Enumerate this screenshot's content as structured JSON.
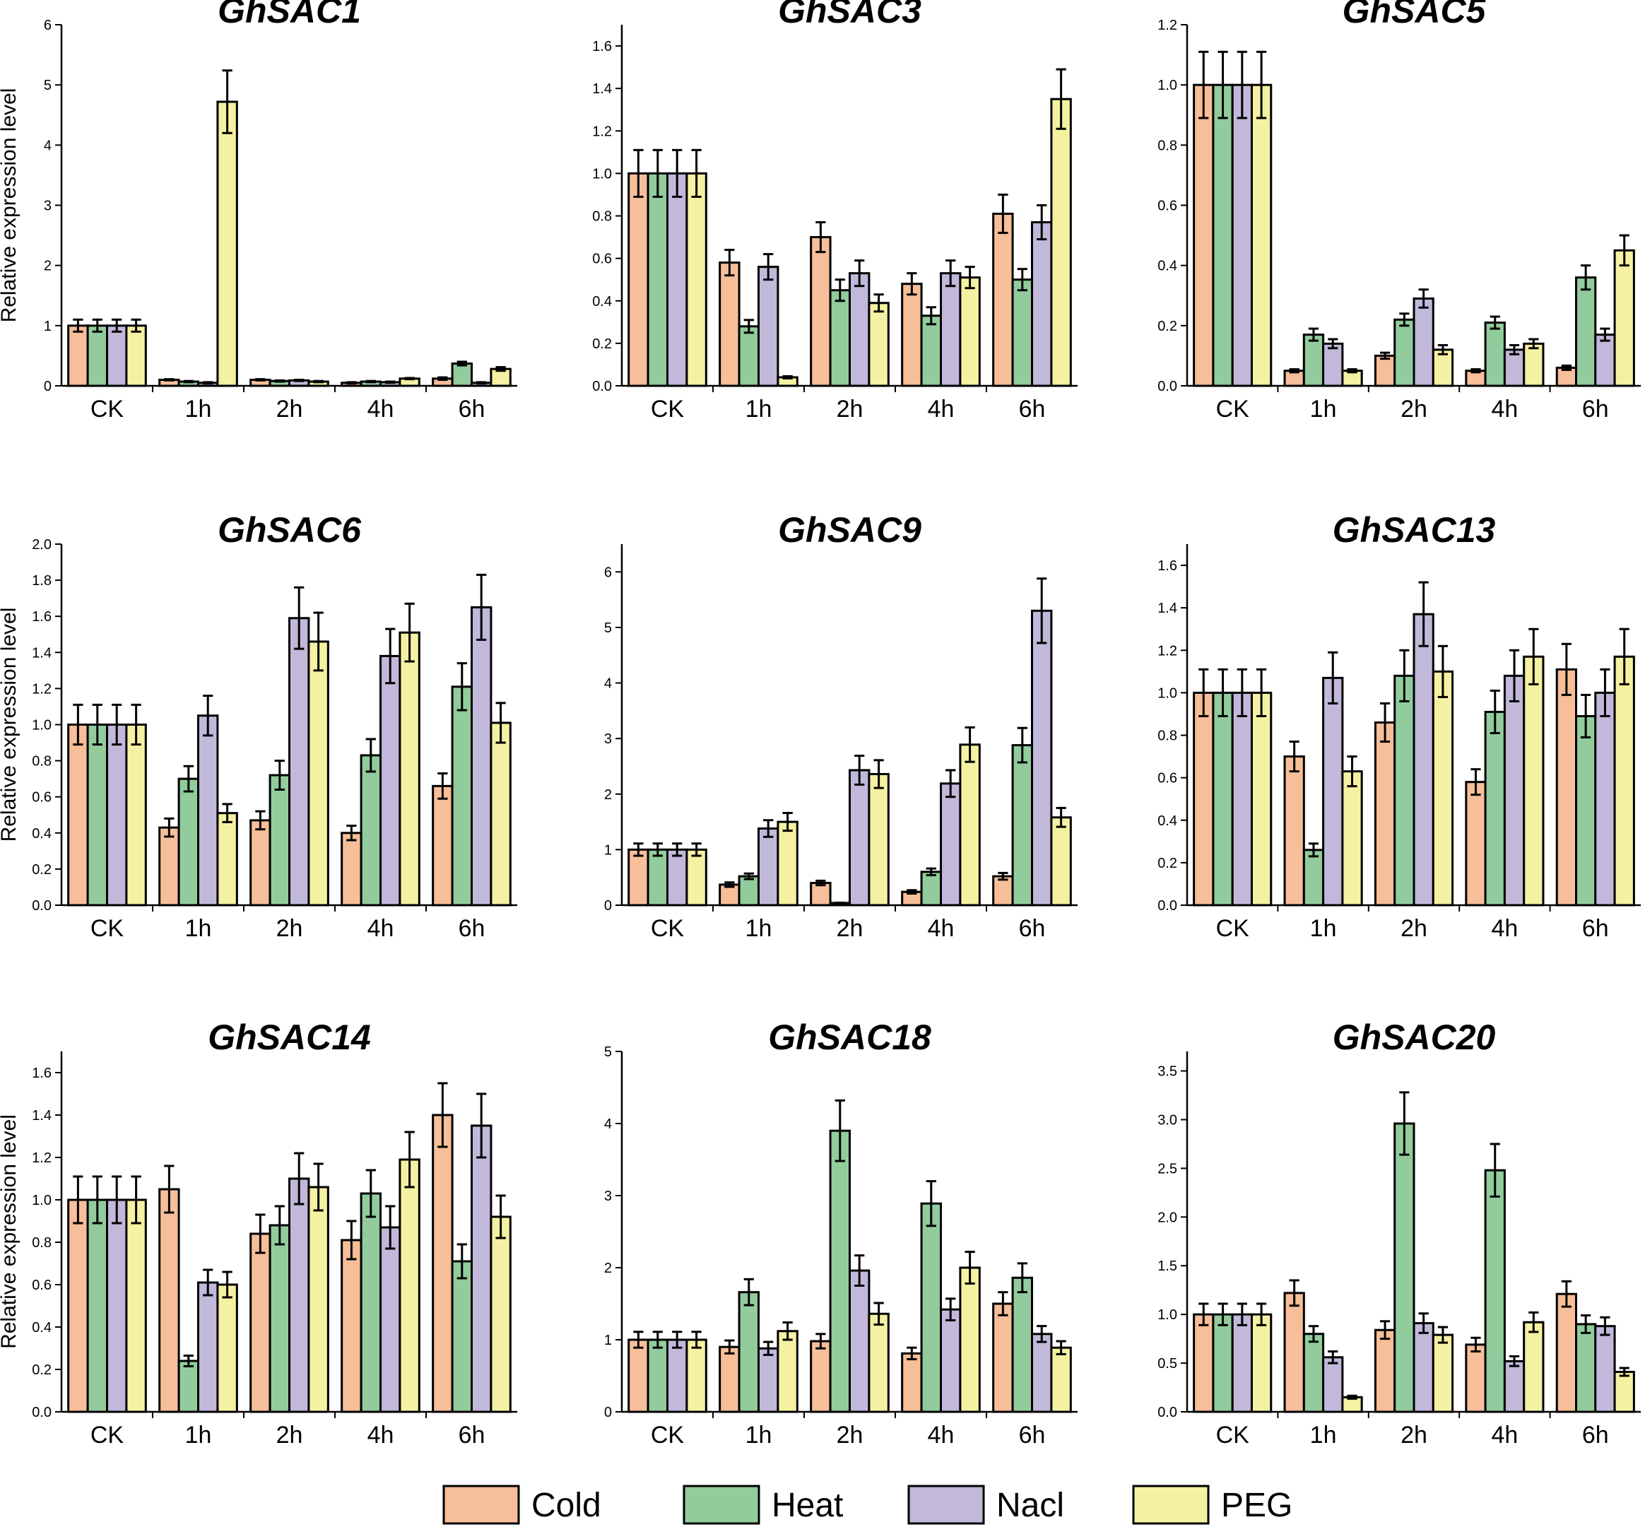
{
  "figure": {
    "legend": [
      {
        "name": "Cold",
        "color": "#F6BE99"
      },
      {
        "name": "Heat",
        "color": "#92CC9C"
      },
      {
        "name": "Nacl",
        "color": "#C1B8DA"
      },
      {
        "name": "PEG",
        "color": "#F5F1A2"
      }
    ]
  },
  "chart_data": [
    {
      "type": "bar",
      "title": "GhSAC1",
      "ylabel": "Relative expression level",
      "categories": [
        "CK",
        "1h",
        "2h",
        "4h",
        "6h"
      ],
      "ylim": [
        0,
        6
      ],
      "yticks": [
        0,
        1,
        2,
        3,
        4,
        5,
        6
      ],
      "ytick_labels": [
        "0",
        "1",
        "2",
        "3",
        "4",
        "5",
        "6"
      ],
      "series": [
        {
          "name": "Cold",
          "values": [
            1.0,
            0.1,
            0.1,
            0.05,
            0.12
          ],
          "errors": [
            0.1,
            0.01,
            0.01,
            0.01,
            0.02
          ]
        },
        {
          "name": "Heat",
          "values": [
            1.0,
            0.07,
            0.08,
            0.07,
            0.37
          ],
          "errors": [
            0.1,
            0.01,
            0.01,
            0.01,
            0.03
          ]
        },
        {
          "name": "Nacl",
          "values": [
            1.0,
            0.05,
            0.09,
            0.06,
            0.05
          ],
          "errors": [
            0.1,
            0.01,
            0.01,
            0.01,
            0.01
          ]
        },
        {
          "name": "PEG",
          "values": [
            1.0,
            4.72,
            0.07,
            0.12,
            0.28
          ],
          "errors": [
            0.1,
            0.52,
            0.01,
            0.01,
            0.03
          ]
        }
      ]
    },
    {
      "type": "bar",
      "title": "GhSAC3",
      "ylabel": "",
      "categories": [
        "CK",
        "1h",
        "2h",
        "4h",
        "6h"
      ],
      "ylim": [
        0,
        1.7
      ],
      "yticks": [
        0,
        0.2,
        0.4,
        0.6,
        0.8,
        1.0,
        1.2,
        1.4,
        1.6
      ],
      "ytick_labels": [
        "0.0",
        "0.2",
        "0.4",
        "0.6",
        "0.8",
        "1.0",
        "1.2",
        "1.4",
        "1.6"
      ],
      "series": [
        {
          "name": "Cold",
          "values": [
            1.0,
            0.58,
            0.7,
            0.48,
            0.81
          ],
          "errors": [
            0.11,
            0.06,
            0.07,
            0.05,
            0.09
          ]
        },
        {
          "name": "Heat",
          "values": [
            1.0,
            0.28,
            0.45,
            0.33,
            0.5
          ],
          "errors": [
            0.11,
            0.03,
            0.05,
            0.04,
            0.05
          ]
        },
        {
          "name": "Nacl",
          "values": [
            1.0,
            0.56,
            0.53,
            0.53,
            0.77
          ],
          "errors": [
            0.11,
            0.06,
            0.06,
            0.06,
            0.08
          ]
        },
        {
          "name": "PEG",
          "values": [
            1.0,
            0.04,
            0.39,
            0.51,
            1.35
          ],
          "errors": [
            0.11,
            0.005,
            0.04,
            0.05,
            0.14
          ]
        }
      ]
    },
    {
      "type": "bar",
      "title": "GhSAC5",
      "ylabel": "",
      "categories": [
        "CK",
        "1h",
        "2h",
        "4h",
        "6h"
      ],
      "ylim": [
        0,
        1.2
      ],
      "yticks": [
        0,
        0.2,
        0.4,
        0.6,
        0.8,
        1.0,
        1.2
      ],
      "ytick_labels": [
        "0.0",
        "0.2",
        "0.4",
        "0.6",
        "0.8",
        "1.0",
        "1.2"
      ],
      "series": [
        {
          "name": "Cold",
          "values": [
            1.0,
            0.05,
            0.1,
            0.05,
            0.06
          ],
          "errors": [
            0.11,
            0.005,
            0.01,
            0.005,
            0.007
          ]
        },
        {
          "name": "Heat",
          "values": [
            1.0,
            0.17,
            0.22,
            0.21,
            0.36
          ],
          "errors": [
            0.11,
            0.02,
            0.02,
            0.02,
            0.04
          ]
        },
        {
          "name": "Nacl",
          "values": [
            1.0,
            0.14,
            0.29,
            0.12,
            0.17
          ],
          "errors": [
            0.11,
            0.015,
            0.03,
            0.015,
            0.02
          ]
        },
        {
          "name": "PEG",
          "values": [
            1.0,
            0.05,
            0.12,
            0.14,
            0.45
          ],
          "errors": [
            0.11,
            0.005,
            0.015,
            0.015,
            0.05
          ]
        }
      ]
    },
    {
      "type": "bar",
      "title": "GhSAC6",
      "ylabel": "Relative expression level",
      "categories": [
        "CK",
        "1h",
        "2h",
        "4h",
        "6h"
      ],
      "ylim": [
        0,
        2.0
      ],
      "yticks": [
        0,
        0.2,
        0.4,
        0.6,
        0.8,
        1.0,
        1.2,
        1.4,
        1.6,
        1.8,
        2.0
      ],
      "ytick_labels": [
        "0.0",
        "0.2",
        "0.4",
        "0.6",
        "0.8",
        "1.0",
        "1.2",
        "1.4",
        "1.6",
        "1.8",
        "2.0"
      ],
      "series": [
        {
          "name": "Cold",
          "values": [
            1.0,
            0.43,
            0.47,
            0.4,
            0.66
          ],
          "errors": [
            0.11,
            0.05,
            0.05,
            0.04,
            0.07
          ]
        },
        {
          "name": "Heat",
          "values": [
            1.0,
            0.7,
            0.72,
            0.83,
            1.21
          ],
          "errors": [
            0.11,
            0.07,
            0.08,
            0.09,
            0.13
          ]
        },
        {
          "name": "Nacl",
          "values": [
            1.0,
            1.05,
            1.59,
            1.38,
            1.65
          ],
          "errors": [
            0.11,
            0.11,
            0.17,
            0.15,
            0.18
          ]
        },
        {
          "name": "PEG",
          "values": [
            1.0,
            0.51,
            1.46,
            1.51,
            1.01
          ],
          "errors": [
            0.11,
            0.05,
            0.16,
            0.16,
            0.11
          ]
        }
      ]
    },
    {
      "type": "bar",
      "title": "GhSAC9",
      "ylabel": "",
      "categories": [
        "CK",
        "1h",
        "2h",
        "4h",
        "6h"
      ],
      "ylim": [
        0,
        6.5
      ],
      "yticks": [
        0,
        1,
        2,
        3,
        4,
        5,
        6
      ],
      "ytick_labels": [
        "0",
        "1",
        "2",
        "3",
        "4",
        "5",
        "6"
      ],
      "series": [
        {
          "name": "Cold",
          "values": [
            1.0,
            0.37,
            0.4,
            0.24,
            0.52
          ],
          "errors": [
            0.11,
            0.04,
            0.04,
            0.03,
            0.06
          ]
        },
        {
          "name": "Heat",
          "values": [
            1.0,
            0.52,
            0.04,
            0.6,
            2.88
          ],
          "errors": [
            0.11,
            0.05,
            0.005,
            0.06,
            0.31
          ]
        },
        {
          "name": "Nacl",
          "values": [
            1.0,
            1.38,
            2.43,
            2.19,
            5.3
          ],
          "errors": [
            0.11,
            0.15,
            0.26,
            0.24,
            0.58
          ]
        },
        {
          "name": "PEG",
          "values": [
            1.0,
            1.5,
            2.36,
            2.89,
            1.58
          ],
          "errors": [
            0.11,
            0.16,
            0.25,
            0.31,
            0.17
          ]
        }
      ]
    },
    {
      "type": "bar",
      "title": "GhSAC13",
      "ylabel": "",
      "categories": [
        "CK",
        "1h",
        "2h",
        "4h",
        "6h"
      ],
      "ylim": [
        0,
        1.7
      ],
      "yticks": [
        0,
        0.2,
        0.4,
        0.6,
        0.8,
        1.0,
        1.2,
        1.4,
        1.6
      ],
      "ytick_labels": [
        "0.0",
        "0.2",
        "0.4",
        "0.6",
        "0.8",
        "1.0",
        "1.2",
        "1.4",
        "1.6"
      ],
      "series": [
        {
          "name": "Cold",
          "values": [
            1.0,
            0.7,
            0.86,
            0.58,
            1.11
          ],
          "errors": [
            0.11,
            0.07,
            0.09,
            0.06,
            0.12
          ]
        },
        {
          "name": "Heat",
          "values": [
            1.0,
            0.26,
            1.08,
            0.91,
            0.89
          ],
          "errors": [
            0.11,
            0.03,
            0.12,
            0.1,
            0.1
          ]
        },
        {
          "name": "Nacl",
          "values": [
            1.0,
            1.07,
            1.37,
            1.08,
            1.0
          ],
          "errors": [
            0.11,
            0.12,
            0.15,
            0.12,
            0.11
          ]
        },
        {
          "name": "PEG",
          "values": [
            1.0,
            0.63,
            1.1,
            1.17,
            1.17
          ],
          "errors": [
            0.11,
            0.07,
            0.12,
            0.13,
            0.13
          ]
        }
      ]
    },
    {
      "type": "bar",
      "title": "GhSAC14",
      "ylabel": "Relative expression level",
      "categories": [
        "CK",
        "1h",
        "2h",
        "4h",
        "6h"
      ],
      "ylim": [
        0,
        1.7
      ],
      "yticks": [
        0,
        0.2,
        0.4,
        0.6,
        0.8,
        1.0,
        1.2,
        1.4,
        1.6
      ],
      "ytick_labels": [
        "0.0",
        "0.2",
        "0.4",
        "0.6",
        "0.8",
        "1.0",
        "1.2",
        "1.4",
        "1.6"
      ],
      "series": [
        {
          "name": "Cold",
          "values": [
            1.0,
            1.05,
            0.84,
            0.81,
            1.4
          ],
          "errors": [
            0.11,
            0.11,
            0.09,
            0.09,
            0.15
          ]
        },
        {
          "name": "Heat",
          "values": [
            1.0,
            0.24,
            0.88,
            1.03,
            0.71
          ],
          "errors": [
            0.11,
            0.025,
            0.09,
            0.11,
            0.08
          ]
        },
        {
          "name": "Nacl",
          "values": [
            1.0,
            0.61,
            1.1,
            0.87,
            1.35
          ],
          "errors": [
            0.11,
            0.06,
            0.12,
            0.1,
            0.15
          ]
        },
        {
          "name": "PEG",
          "values": [
            1.0,
            0.6,
            1.06,
            1.19,
            0.92
          ],
          "errors": [
            0.11,
            0.06,
            0.11,
            0.13,
            0.1
          ]
        }
      ]
    },
    {
      "type": "bar",
      "title": "GhSAC18",
      "ylabel": "",
      "categories": [
        "CK",
        "1h",
        "2h",
        "4h",
        "6h"
      ],
      "ylim": [
        0,
        5
      ],
      "yticks": [
        0,
        1,
        2,
        3,
        4,
        5
      ],
      "ytick_labels": [
        "0",
        "1",
        "2",
        "3",
        "4",
        "5"
      ],
      "series": [
        {
          "name": "Cold",
          "values": [
            1.0,
            0.9,
            0.98,
            0.81,
            1.5
          ],
          "errors": [
            0.11,
            0.09,
            0.1,
            0.08,
            0.16
          ]
        },
        {
          "name": "Heat",
          "values": [
            1.0,
            1.66,
            3.9,
            2.89,
            1.86
          ],
          "errors": [
            0.11,
            0.18,
            0.42,
            0.31,
            0.2
          ]
        },
        {
          "name": "Nacl",
          "values": [
            1.0,
            0.88,
            1.96,
            1.42,
            1.08
          ],
          "errors": [
            0.11,
            0.09,
            0.21,
            0.15,
            0.11
          ]
        },
        {
          "name": "PEG",
          "values": [
            1.0,
            1.12,
            1.36,
            2.0,
            0.89
          ],
          "errors": [
            0.11,
            0.12,
            0.15,
            0.22,
            0.09
          ]
        }
      ]
    },
    {
      "type": "bar",
      "title": "GhSAC20",
      "ylabel": "",
      "categories": [
        "CK",
        "1h",
        "2h",
        "4h",
        "6h"
      ],
      "ylim": [
        0,
        3.7
      ],
      "yticks": [
        0,
        0.5,
        1.0,
        1.5,
        2.0,
        2.5,
        3.0,
        3.5
      ],
      "ytick_labels": [
        "0.0",
        "0.5",
        "1.0",
        "1.5",
        "2.0",
        "2.5",
        "3.0",
        "3.5"
      ],
      "series": [
        {
          "name": "Cold",
          "values": [
            1.0,
            1.22,
            0.84,
            0.69,
            1.21
          ],
          "errors": [
            0.11,
            0.13,
            0.09,
            0.07,
            0.13
          ]
        },
        {
          "name": "Heat",
          "values": [
            1.0,
            0.8,
            2.96,
            2.48,
            0.9
          ],
          "errors": [
            0.11,
            0.08,
            0.32,
            0.27,
            0.09
          ]
        },
        {
          "name": "Nacl",
          "values": [
            1.0,
            0.56,
            0.91,
            0.52,
            0.88
          ],
          "errors": [
            0.11,
            0.06,
            0.1,
            0.05,
            0.09
          ]
        },
        {
          "name": "PEG",
          "values": [
            1.0,
            0.15,
            0.79,
            0.92,
            0.41
          ],
          "errors": [
            0.11,
            0.015,
            0.08,
            0.1,
            0.04
          ]
        }
      ]
    }
  ]
}
